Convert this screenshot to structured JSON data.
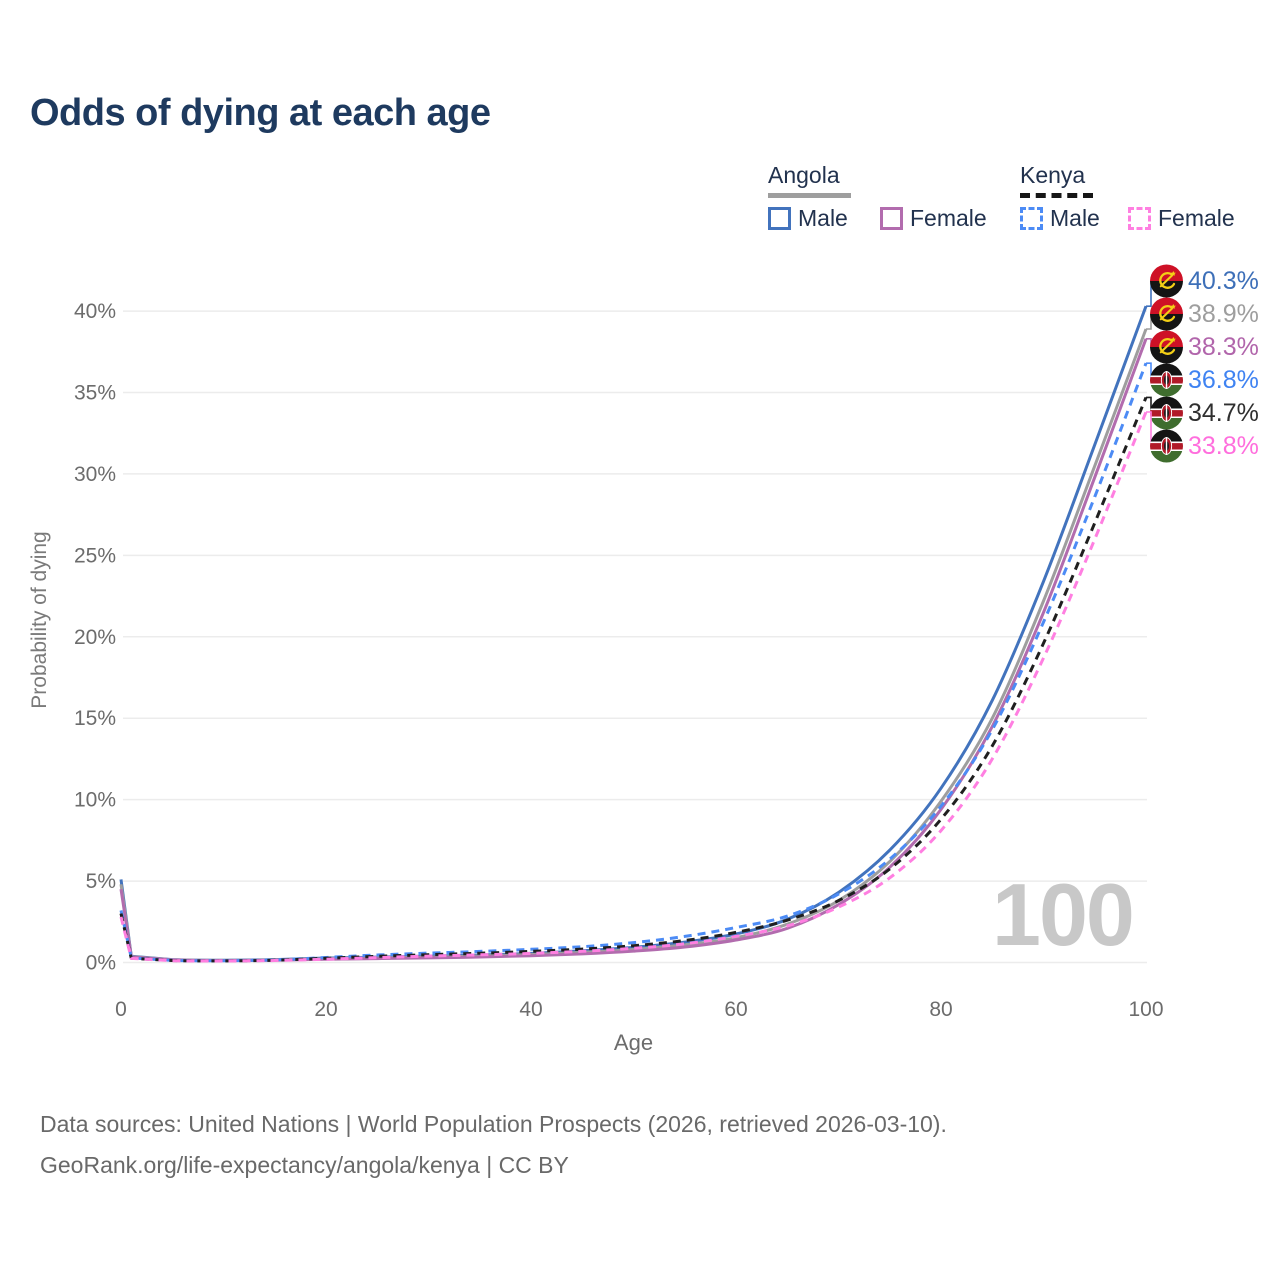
{
  "title": "Odds of dying at each age",
  "watermark_age": "100",
  "legend": {
    "groups": [
      {
        "label": "Angola",
        "underline_style": "solid",
        "underline_color": "#9e9e9e",
        "items": [
          {
            "label": "Male",
            "series_index": 0
          },
          {
            "label": "Female",
            "series_index": 2
          }
        ]
      },
      {
        "label": "Kenya",
        "underline_style": "dashed",
        "underline_color": "#161616",
        "items": [
          {
            "label": "Male",
            "series_index": 3
          },
          {
            "label": "Female",
            "series_index": 5
          }
        ]
      }
    ]
  },
  "footer": {
    "line1": "Data sources: United Nations | World Population Prospects (2026, retrieved 2026-03-10).",
    "line2": "GeoRank.org/life-expectancy/angola/kenya | CC BY"
  },
  "chart_data": {
    "type": "line",
    "title": "Odds of dying at each age",
    "xlabel": "Age",
    "ylabel": "Probability of dying",
    "xlim": [
      0,
      100
    ],
    "ylim_pct": [
      0,
      42
    ],
    "xticks": [
      "0",
      "20",
      "40",
      "60",
      "80",
      "100"
    ],
    "xtick_values": [
      0,
      20,
      40,
      60,
      80,
      100
    ],
    "ytick_labels": [
      "0%",
      "5%",
      "10%",
      "15%",
      "20%",
      "25%",
      "30%",
      "35%",
      "40%"
    ],
    "ytick_values": [
      0,
      5,
      10,
      15,
      20,
      25,
      30,
      35,
      40
    ],
    "grid": "horizontal-only",
    "legend_position": "top-right",
    "ages": [
      0,
      1,
      5,
      10,
      15,
      20,
      25,
      30,
      35,
      40,
      45,
      50,
      55,
      60,
      65,
      70,
      75,
      80,
      85,
      90,
      95,
      100
    ],
    "series": [
      {
        "name": "Angola Male",
        "country": "angola",
        "dash": "solid",
        "color": "#4273bd",
        "label_color": "#3d6fb8",
        "end_label": "40.3%",
        "values": [
          5.1,
          0.38,
          0.18,
          0.14,
          0.18,
          0.27,
          0.33,
          0.39,
          0.46,
          0.56,
          0.72,
          0.93,
          1.25,
          1.75,
          2.65,
          4.3,
          6.9,
          10.7,
          16.1,
          23.4,
          31.8,
          40.3
        ]
      },
      {
        "name": "Angola Both sexes",
        "country": "angola",
        "dash": "solid",
        "color": "#9e9e9e",
        "label_color": "#9e9e9e",
        "end_label": "38.9%",
        "values": [
          4.8,
          0.36,
          0.17,
          0.13,
          0.16,
          0.23,
          0.28,
          0.33,
          0.4,
          0.49,
          0.62,
          0.8,
          1.08,
          1.52,
          2.35,
          3.8,
          6.2,
          9.9,
          15.0,
          22.2,
          30.5,
          38.9
        ]
      },
      {
        "name": "Angola Female",
        "country": "angola",
        "dash": "solid",
        "color": "#b26cae",
        "label_color": "#b165ab",
        "end_label": "38.3%",
        "values": [
          4.5,
          0.34,
          0.16,
          0.12,
          0.14,
          0.2,
          0.24,
          0.28,
          0.34,
          0.42,
          0.53,
          0.7,
          0.95,
          1.38,
          2.1,
          3.55,
          5.85,
          9.4,
          14.5,
          21.5,
          29.8,
          38.3
        ]
      },
      {
        "name": "Kenya Male",
        "country": "kenya",
        "dash": "dashed",
        "color": "#4c8bf5",
        "label_color": "#3f83f2",
        "end_label": "36.8%",
        "values": [
          3.2,
          0.28,
          0.13,
          0.11,
          0.16,
          0.31,
          0.46,
          0.58,
          0.68,
          0.81,
          0.97,
          1.22,
          1.6,
          2.15,
          2.85,
          4.2,
          6.35,
          9.6,
          14.3,
          20.9,
          28.6,
          36.8
        ]
      },
      {
        "name": "Kenya Both sexes",
        "country": "kenya",
        "dash": "dashed",
        "color": "#1f1f1f",
        "label_color": "#2f2f2f",
        "end_label": "34.7%",
        "values": [
          3.0,
          0.26,
          0.12,
          0.1,
          0.14,
          0.26,
          0.38,
          0.48,
          0.57,
          0.68,
          0.82,
          1.03,
          1.35,
          1.85,
          2.6,
          3.8,
          5.75,
          8.8,
          13.3,
          19.6,
          27.0,
          34.7
        ]
      },
      {
        "name": "Kenya Female",
        "country": "kenya",
        "dash": "dashed",
        "color": "#ff7fe1",
        "label_color": "#ff6edd",
        "end_label": "33.8%",
        "values": [
          2.8,
          0.25,
          0.11,
          0.09,
          0.12,
          0.2,
          0.3,
          0.39,
          0.47,
          0.56,
          0.69,
          0.87,
          1.15,
          1.6,
          2.25,
          3.4,
          5.2,
          8.1,
          12.5,
          18.7,
          26.0,
          33.8
        ]
      }
    ],
    "flag_colors": {
      "angola": {
        "red": "#ce1126",
        "black": "#141414",
        "yellow": "#f3cf16"
      },
      "kenya": {
        "black": "#141414",
        "white": "#ffffff",
        "red": "#b11a28",
        "green": "#3f6d2e",
        "shield_dark": "#1c1c1c"
      }
    }
  }
}
